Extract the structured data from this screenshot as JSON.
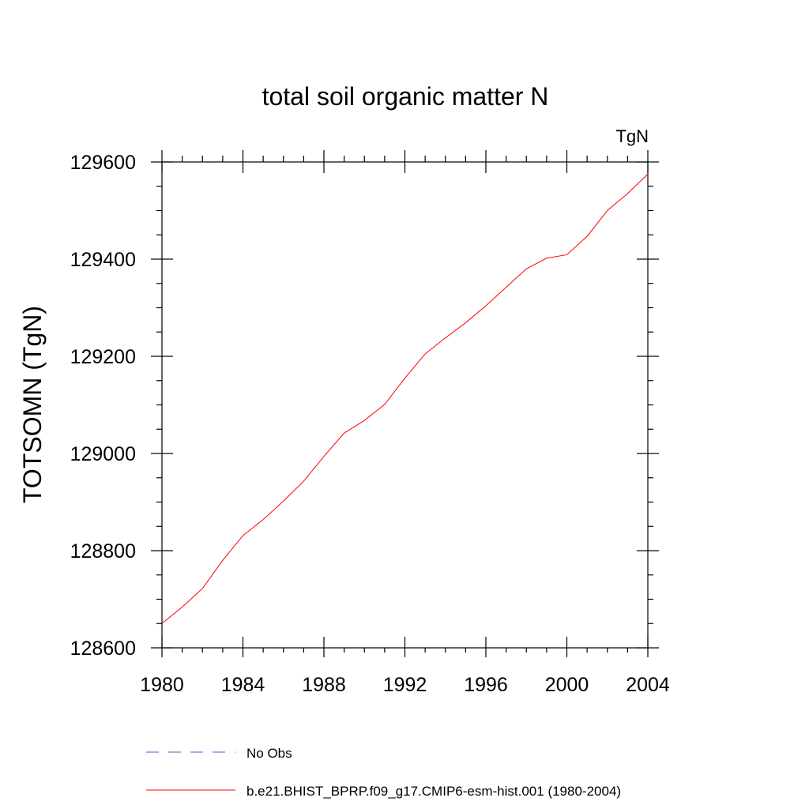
{
  "chart_data": {
    "type": "line",
    "title": "total soil organic matter N",
    "units_label": "TgN",
    "ylabel": "TOTSOMN  (TgN)",
    "xlabel": "",
    "xlim": [
      1980,
      2004
    ],
    "ylim": [
      128600,
      129600
    ],
    "x_ticks": [
      1980,
      1984,
      1988,
      1992,
      1996,
      2000,
      2004
    ],
    "y_ticks": [
      128600,
      128800,
      129000,
      129200,
      129400,
      129600
    ],
    "grid": false,
    "legend_position": "bottom",
    "series": [
      {
        "name": "b.e21.BHIST_BPRP.f09_g17.CMIP6-esm-hist.001 (1980-2004)",
        "color": "#ff0000",
        "style": "solid",
        "x": [
          1980,
          1981,
          1982,
          1983,
          1984,
          1985,
          1986,
          1987,
          1988,
          1989,
          1990,
          1991,
          1992,
          1993,
          1994,
          1995,
          1996,
          1997,
          1998,
          1999,
          2000,
          2001,
          2002,
          2003,
          2004
        ],
        "y": [
          128650,
          128684,
          128722,
          128780,
          128831,
          128864,
          128902,
          128943,
          128994,
          129042,
          129068,
          129101,
          129155,
          129205,
          129238,
          129269,
          129304,
          129342,
          129380,
          129402,
          129409,
          129447,
          129500,
          129535,
          129575
        ]
      }
    ],
    "legend": [
      {
        "label": "No Obs",
        "color": "#5a5ad2",
        "style": "dashed"
      },
      {
        "label": "b.e21.BHIST_BPRP.f09_g17.CMIP6-esm-hist.001 (1980-2004)",
        "color": "#ff0000",
        "style": "solid"
      }
    ]
  }
}
